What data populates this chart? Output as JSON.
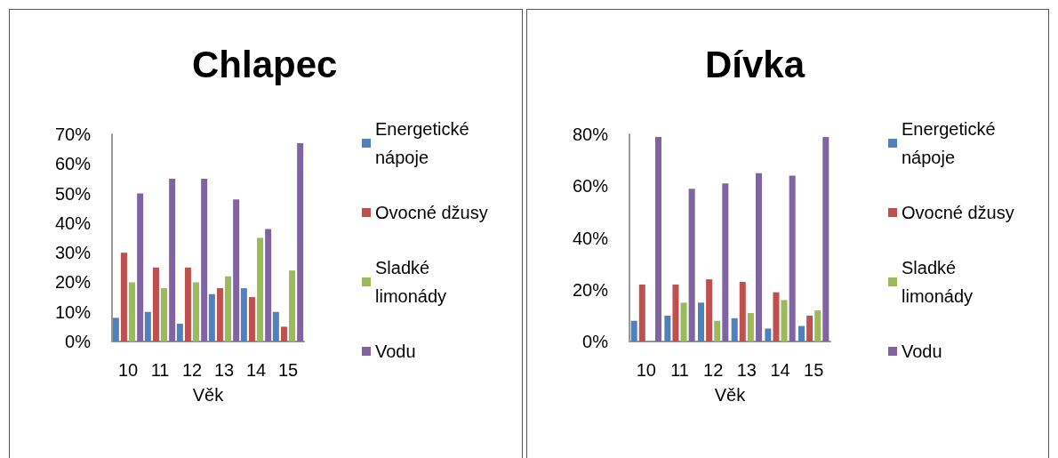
{
  "chart_data": [
    {
      "type": "bar",
      "title": "Chlapec",
      "xlabel": "Věk",
      "categories": [
        "10",
        "11",
        "12",
        "13",
        "14",
        "15"
      ],
      "series": [
        {
          "name": "Energetické nápoje",
          "color": "#4f81bd",
          "values": [
            8,
            10,
            6,
            16,
            18,
            10
          ]
        },
        {
          "name": "Ovocné džusy",
          "color": "#c0504d",
          "values": [
            30,
            25,
            25,
            18,
            15,
            5
          ]
        },
        {
          "name": "Sladké limonády",
          "color": "#9bbb59",
          "values": [
            20,
            18,
            20,
            22,
            35,
            24
          ]
        },
        {
          "name": "Vodu",
          "color": "#8064a2",
          "values": [
            50,
            55,
            55,
            48,
            38,
            67
          ]
        }
      ],
      "ylim": [
        0,
        70
      ],
      "yticks": [
        {
          "value": 0,
          "label": "0%"
        },
        {
          "value": 10,
          "label": "10%"
        },
        {
          "value": 20,
          "label": "20%"
        },
        {
          "value": 30,
          "label": "30%"
        },
        {
          "value": 40,
          "label": "40%"
        },
        {
          "value": 50,
          "label": "50%"
        },
        {
          "value": 60,
          "label": "60%"
        },
        {
          "value": 70,
          "label": "70%"
        }
      ],
      "grid": false,
      "legend": "right"
    },
    {
      "type": "bar",
      "title": "Dívka",
      "xlabel": "Věk",
      "categories": [
        "10",
        "11",
        "12",
        "13",
        "14",
        "15"
      ],
      "series": [
        {
          "name": "Energetické nápoje",
          "color": "#4f81bd",
          "values": [
            8,
            10,
            15,
            9,
            5,
            6
          ]
        },
        {
          "name": "Ovocné džusy",
          "color": "#c0504d",
          "values": [
            22,
            22,
            24,
            23,
            19,
            10
          ]
        },
        {
          "name": "Sladké limonády",
          "color": "#9bbb59",
          "values": [
            0,
            15,
            8,
            11,
            16,
            12
          ]
        },
        {
          "name": "Vodu",
          "color": "#8064a2",
          "values": [
            79,
            59,
            61,
            65,
            64,
            79
          ]
        }
      ],
      "ylim": [
        0,
        80
      ],
      "yticks": [
        {
          "value": 0,
          "label": "0%"
        },
        {
          "value": 20,
          "label": "20%"
        },
        {
          "value": 40,
          "label": "40%"
        },
        {
          "value": 60,
          "label": "60%"
        },
        {
          "value": 80,
          "label": "80%"
        }
      ],
      "grid": false,
      "legend": "right"
    }
  ]
}
